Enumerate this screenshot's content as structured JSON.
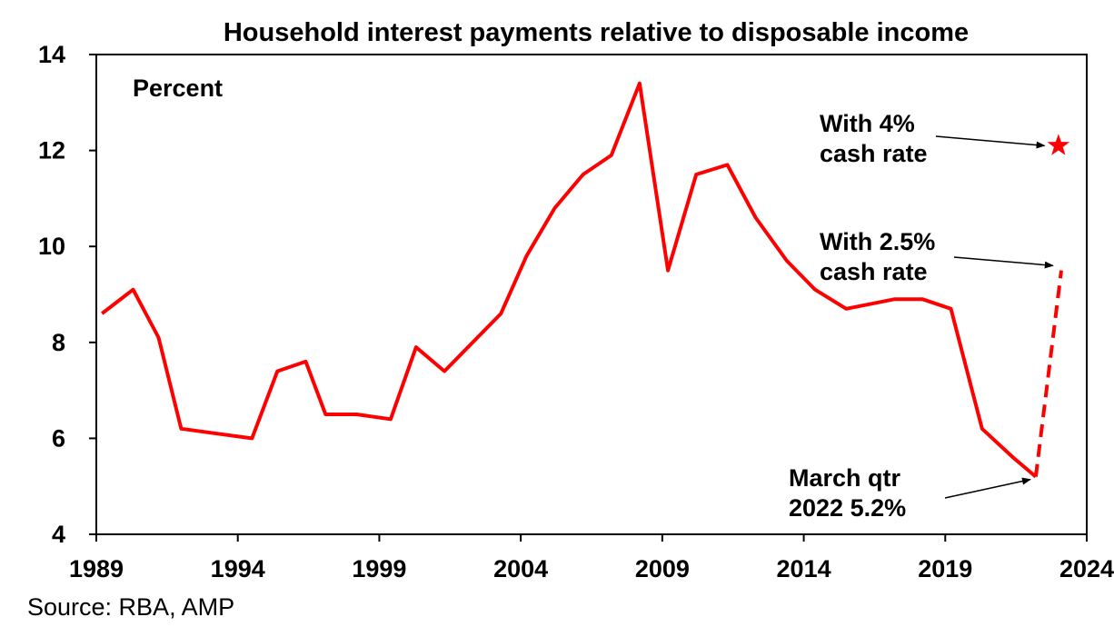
{
  "chart_data": {
    "type": "line",
    "title": "Household interest payments relative to disposable income",
    "ylabel": "Percent",
    "xlabel": "",
    "xlim": [
      1989,
      2024
    ],
    "ylim": [
      4,
      14
    ],
    "x_ticks": [
      "1989",
      "1994",
      "1999",
      "2004",
      "2009",
      "2014",
      "2019",
      "2024"
    ],
    "y_ticks": [
      "4",
      "6",
      "8",
      "10",
      "12",
      "14"
    ],
    "grid": false,
    "series": [
      {
        "style": "solid",
        "color": "#ff0000",
        "points": [
          [
            1989.2,
            8.6
          ],
          [
            1990.3,
            9.1
          ],
          [
            1991.2,
            8.1
          ],
          [
            1992.0,
            6.2
          ],
          [
            1994.5,
            6.0
          ],
          [
            1995.4,
            7.4
          ],
          [
            1996.4,
            7.6
          ],
          [
            1997.1,
            6.5
          ],
          [
            1998.2,
            6.5
          ],
          [
            1999.4,
            6.4
          ],
          [
            2000.3,
            7.9
          ],
          [
            2001.3,
            7.4
          ],
          [
            2003.3,
            8.6
          ],
          [
            2004.2,
            9.8
          ],
          [
            2005.2,
            10.8
          ],
          [
            2006.2,
            11.5
          ],
          [
            2007.2,
            11.9
          ],
          [
            2008.2,
            13.4
          ],
          [
            2009.2,
            9.5
          ],
          [
            2010.2,
            11.5
          ],
          [
            2011.3,
            11.7
          ],
          [
            2012.3,
            10.6
          ],
          [
            2013.4,
            9.7
          ],
          [
            2014.4,
            9.1
          ],
          [
            2015.5,
            8.7
          ],
          [
            2017.2,
            8.9
          ],
          [
            2018.2,
            8.9
          ],
          [
            2019.2,
            8.7
          ],
          [
            2020.3,
            6.2
          ],
          [
            2021.4,
            5.6
          ],
          [
            2022.2,
            5.2
          ]
        ]
      },
      {
        "style": "dashed",
        "color": "#ff0000",
        "points": [
          [
            2022.2,
            5.2
          ],
          [
            2023.1,
            9.5
          ]
        ]
      }
    ],
    "markers": [
      {
        "shape": "star",
        "color": "#ff0000",
        "x": 2023.0,
        "y": 12.1
      }
    ],
    "annotations": [
      {
        "lines": [
          "With 4%",
          "cash rate"
        ],
        "arrow_to": [
          2022.7,
          12.1
        ]
      },
      {
        "lines": [
          "With 2.5%",
          "cash rate"
        ],
        "arrow_to": [
          2023.0,
          9.6
        ]
      },
      {
        "lines": [
          "March qtr",
          "2022 5.2%"
        ],
        "arrow_to": [
          2022.2,
          5.2
        ]
      }
    ],
    "source": "Source: RBA, AMP"
  }
}
